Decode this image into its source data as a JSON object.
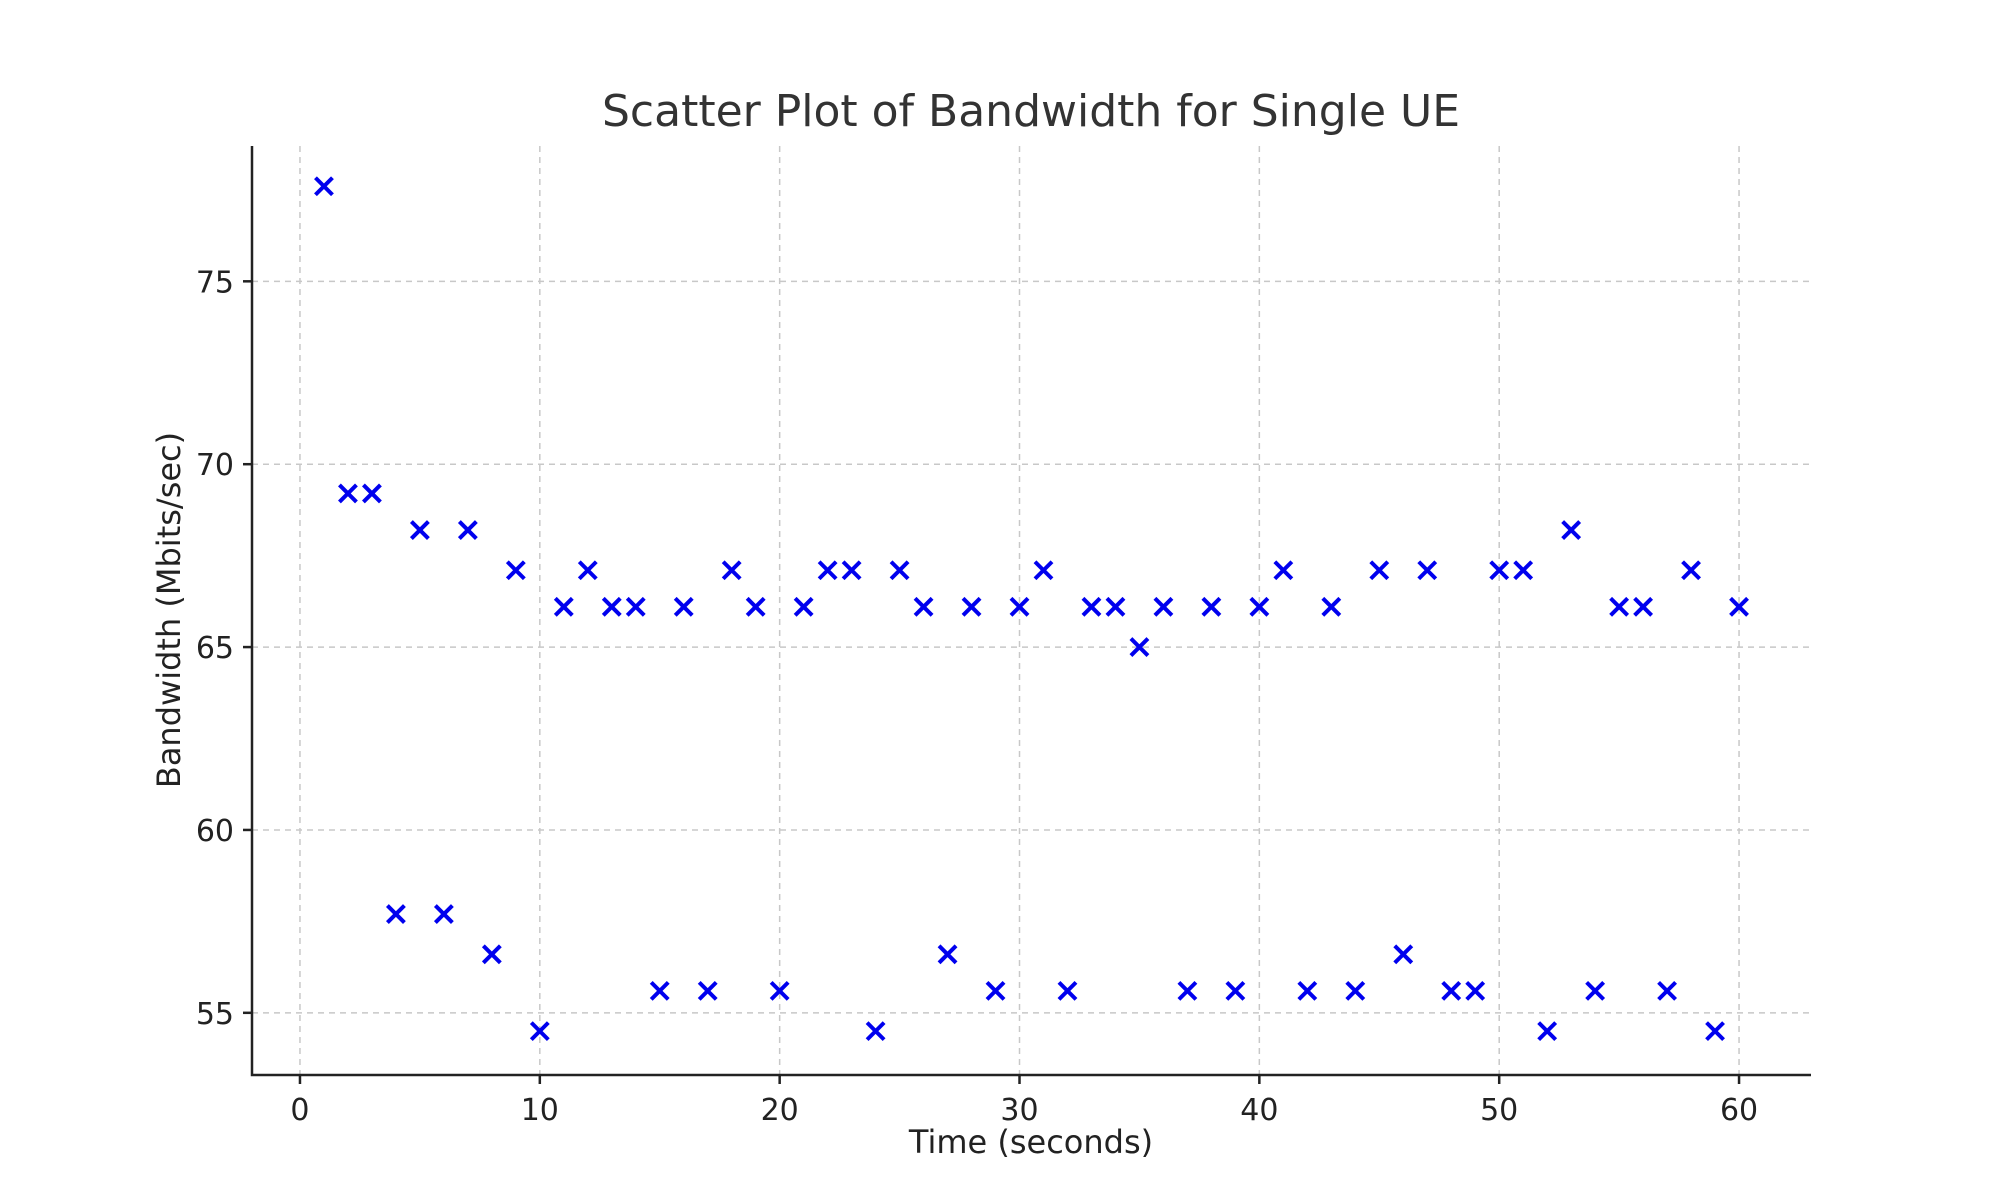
{
  "chart_data": {
    "type": "scatter",
    "title": "Scatter Plot of Bandwidth for Single UE",
    "xlabel": "Time (seconds)",
    "ylabel": "Bandwidth (Mbits/sec)",
    "xlim": [
      -2,
      63
    ],
    "ylim": [
      53.3,
      78.7
    ],
    "xticks": [
      0,
      10,
      20,
      30,
      40,
      50,
      60
    ],
    "yticks": [
      55,
      60,
      65,
      70,
      75
    ],
    "grid": true,
    "marker": "x",
    "marker_color": "#0000ee",
    "x": [
      1,
      2,
      3,
      4,
      5,
      6,
      7,
      8,
      9,
      10,
      11,
      12,
      13,
      14,
      15,
      16,
      17,
      18,
      19,
      20,
      21,
      22,
      23,
      24,
      25,
      26,
      27,
      28,
      29,
      30,
      31,
      32,
      33,
      34,
      35,
      36,
      37,
      38,
      39,
      40,
      41,
      42,
      43,
      44,
      45,
      46,
      47,
      48,
      49,
      50,
      51,
      52,
      53,
      54,
      55,
      56,
      57,
      58,
      59,
      60
    ],
    "y": [
      77.6,
      69.2,
      69.2,
      57.7,
      68.2,
      57.7,
      68.2,
      56.6,
      67.1,
      54.5,
      66.1,
      67.1,
      66.1,
      66.1,
      55.6,
      66.1,
      55.6,
      67.1,
      66.1,
      55.6,
      66.1,
      67.1,
      67.1,
      54.5,
      67.1,
      66.1,
      56.6,
      66.1,
      55.6,
      66.1,
      67.1,
      55.6,
      66.1,
      66.1,
      65.0,
      66.1,
      55.6,
      66.1,
      55.6,
      66.1,
      67.1,
      55.6,
      66.1,
      55.6,
      67.1,
      56.6,
      67.1,
      55.6,
      55.6,
      67.1,
      67.1,
      54.5,
      68.2,
      55.6,
      66.1,
      66.1,
      55.6,
      67.1,
      54.5,
      66.1
    ]
  }
}
